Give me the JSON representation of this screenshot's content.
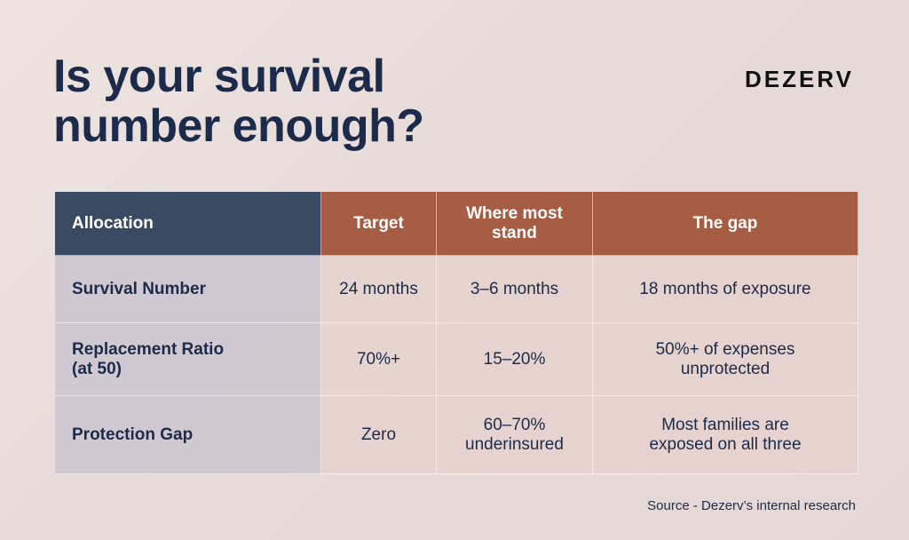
{
  "title": {
    "line1": "Is your survival",
    "line2": "number enough?"
  },
  "brand": "DEZERV",
  "table": {
    "headers": [
      "Allocation",
      "Target",
      "Where most\nstand",
      "The gap"
    ],
    "rows": [
      [
        "Survival Number",
        "24 months",
        "3–6 months",
        "18 months of exposure"
      ],
      [
        "Replacement Ratio\n(at 50)",
        "70%+",
        "15–20%",
        "50%+ of expenses\nunprotected"
      ],
      [
        "Protection Gap",
        "Zero",
        "60–70%\nunderinsured",
        "Most families are\nexposed on all three"
      ]
    ]
  },
  "source": "Source - Dezerv’s internal research",
  "colors": {
    "navy": "#1c2b4a",
    "header_dark": "#3a4a63",
    "header_rust": "#a75c44"
  }
}
